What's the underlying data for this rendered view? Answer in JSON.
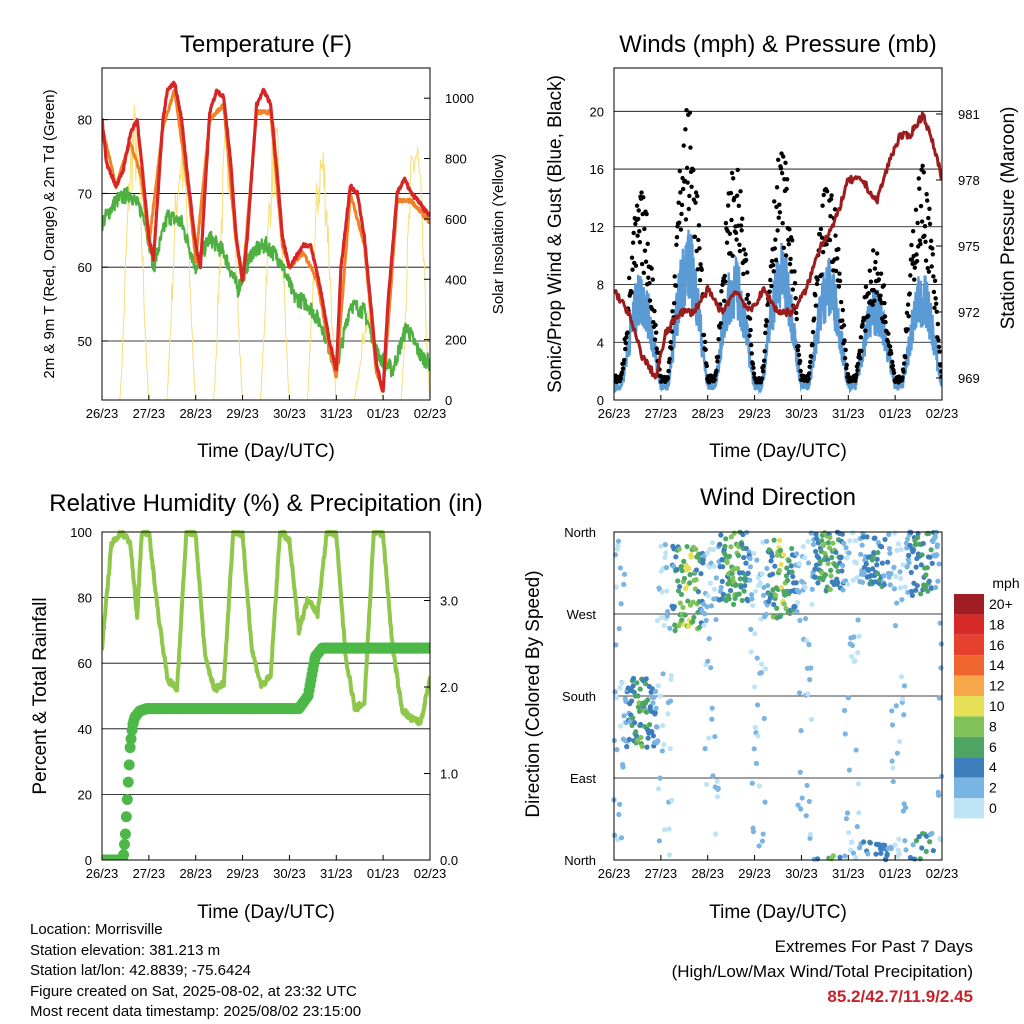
{
  "panels": {
    "temperature": {
      "title": "Temperature (F)",
      "ylabel_left": "2m & 9m T (Red, Orange) & 2m Td (Green)",
      "ylabel_right": "Solar Insolation (Yellow)",
      "xlabel": "Time (Day/UTC)"
    },
    "winds": {
      "title": "Winds (mph) & Pressure (mb)",
      "ylabel_left": "Sonic/Prop Wind & Gust (Blue, Black)",
      "ylabel_right": "Station Pressure (Maroon)",
      "xlabel": "Time (Day/UTC)"
    },
    "humidity": {
      "title": "Relative Humidity (%) & Precipitation (in)",
      "ylabel_left": "Percent & Total Rainfall",
      "xlabel": "Time (Day/UTC)"
    },
    "direction": {
      "title": "Wind Direction",
      "ylabel_left": "Direction (Colored By Speed)",
      "xlabel": "Time (Day/UTC)"
    }
  },
  "colorbar": {
    "title": "mph",
    "labels": [
      "20+",
      "18",
      "16",
      "14",
      "12",
      "10",
      "8",
      "6",
      "4",
      "2",
      "0"
    ],
    "colors": [
      "#a01d23",
      "#d52a27",
      "#e7402f",
      "#f0652f",
      "#f7a64a",
      "#e5e055",
      "#82c359",
      "#4ea664",
      "#3d7ebd",
      "#7ab4e3",
      "#bde3f5"
    ]
  },
  "station": {
    "location": "Location: Morrisville",
    "elevation": "Station elevation: 381.213 m",
    "latlon": "Station lat/lon: 42.8839; -75.6424",
    "created": "Figure created on Sat, 2025-08-02, at 23:32 UTC",
    "latest": "Most recent data timestamp: 2025/08/02 23:15:00"
  },
  "extremes": {
    "heading": "Extremes For Past 7 Days",
    "subheading": "(High/Low/Max Wind/Total Precipitation)",
    "values": "85.2/42.7/11.9/2.45"
  },
  "chart_data": [
    {
      "type": "line",
      "title": "Temperature (F)",
      "xlabel": "Time (Day/UTC)",
      "x_ticks": [
        "26/23",
        "27/23",
        "28/23",
        "29/23",
        "30/23",
        "31/23",
        "01/23",
        "02/23"
      ],
      "ylim": [
        42,
        87
      ],
      "yticks": [
        50,
        60,
        70,
        80
      ],
      "y2lim": [
        0,
        1100
      ],
      "y2ticks": [
        0,
        200,
        400,
        600,
        800,
        1000
      ],
      "series": [
        {
          "name": "2m T",
          "color": "#d62626",
          "axis": "left",
          "x": [
            0,
            0.1,
            0.3,
            0.45,
            0.6,
            0.75,
            0.85,
            1.0,
            1.1,
            1.3,
            1.4,
            1.55,
            1.7,
            1.85,
            2.0,
            2.1,
            2.3,
            2.45,
            2.6,
            2.75,
            2.85,
            3.0,
            3.1,
            3.3,
            3.45,
            3.6,
            3.75,
            3.85,
            4.0,
            4.1,
            4.3,
            4.45,
            4.6,
            4.75,
            4.85,
            5.0,
            5.1,
            5.3,
            5.45,
            5.6,
            5.75,
            5.85,
            6.0,
            6.1,
            6.3,
            6.45,
            6.6,
            6.75,
            6.85,
            7.0
          ],
          "y": [
            80,
            74,
            71,
            73,
            78,
            80,
            74,
            64,
            61,
            80,
            84,
            85,
            80,
            71,
            63,
            60,
            81,
            84,
            83,
            74,
            65,
            58,
            64,
            82,
            84,
            82,
            72,
            64,
            60,
            61,
            63,
            63,
            59,
            54,
            50,
            46,
            60,
            71,
            70,
            64,
            54,
            47,
            43,
            55,
            70,
            72,
            70,
            69,
            68,
            67
          ]
        },
        {
          "name": "9m T",
          "color": "#f08228",
          "axis": "left",
          "x": [
            0,
            0.3,
            0.6,
            0.85,
            1.0,
            1.3,
            1.55,
            1.85,
            2.0,
            2.3,
            2.6,
            2.85,
            3.0,
            3.3,
            3.6,
            3.85,
            4.0,
            4.3,
            4.6,
            4.85,
            5.0,
            5.3,
            5.6,
            5.85,
            6.0,
            6.3,
            6.6,
            7.0
          ],
          "y": [
            79,
            71,
            77,
            72,
            63,
            79,
            84,
            70,
            61,
            80,
            82,
            64,
            58,
            81,
            81,
            63,
            60,
            62,
            58,
            49,
            45,
            70,
            63,
            46,
            43,
            69,
            69,
            66
          ]
        },
        {
          "name": "2m Td",
          "color": "#4eb040",
          "axis": "left",
          "x": [
            0,
            0.3,
            0.6,
            0.9,
            1.1,
            1.4,
            1.7,
            2.0,
            2.3,
            2.6,
            2.9,
            3.2,
            3.5,
            3.8,
            4.1,
            4.4,
            4.7,
            5.0,
            5.3,
            5.6,
            5.9,
            6.2,
            6.5,
            6.8,
            7.0
          ],
          "y": [
            66,
            69,
            70,
            67,
            60,
            67,
            66,
            60,
            64,
            62,
            57,
            62,
            63,
            61,
            56,
            55,
            52,
            46,
            55,
            54,
            48,
            46,
            52,
            48,
            47
          ]
        },
        {
          "name": "Solar Insolation",
          "color": "#f5e07a",
          "axis": "right",
          "peaks": [
            1000,
            920,
            980,
            940,
            900,
            300,
            950,
            940
          ]
        }
      ]
    },
    {
      "type": "scatter",
      "title": "Winds (mph) & Pressure (mb)",
      "xlabel": "Time (Day/UTC)",
      "x_ticks": [
        "26/23",
        "27/23",
        "28/23",
        "29/23",
        "30/23",
        "31/23",
        "01/23",
        "02/23"
      ],
      "ylim": [
        0,
        23
      ],
      "yticks": [
        0,
        4,
        8,
        12,
        16,
        20
      ],
      "y2ticks": [
        969,
        972,
        975,
        978,
        981
      ],
      "series": [
        {
          "name": "Gust",
          "color": "#000000",
          "peaks": [
            14,
            20,
            16,
            17,
            15,
            10,
            16,
            13
          ]
        },
        {
          "name": "Sonic/Prop Wind",
          "color": "#5b9bd5",
          "peaks": [
            9,
            12,
            10,
            11,
            10,
            8,
            9,
            8
          ]
        },
        {
          "name": "Station Pressure",
          "color": "#9b1c1c",
          "x": [
            0,
            0.3,
            0.6,
            0.9,
            1.1,
            1.4,
            1.7,
            2.0,
            2.3,
            2.6,
            2.9,
            3.2,
            3.5,
            3.8,
            4.1,
            4.4,
            4.7,
            5.0,
            5.3,
            5.6,
            5.9,
            6.1,
            6.3,
            6.6,
            6.9,
            7.0
          ],
          "y": [
            973,
            972,
            970,
            969,
            971,
            972,
            972,
            973,
            972,
            973,
            972,
            973,
            972,
            972,
            973,
            975,
            976,
            978,
            978,
            977,
            979,
            980,
            980,
            981,
            979,
            978
          ]
        }
      ]
    },
    {
      "type": "line",
      "title": "Relative Humidity (%) & Precipitation (in)",
      "xlabel": "Time (Day/UTC)",
      "x_ticks": [
        "26/23",
        "27/23",
        "28/23",
        "29/23",
        "30/23",
        "31/23",
        "01/23",
        "02/23"
      ],
      "ylim": [
        0,
        100
      ],
      "yticks": [
        0,
        20,
        40,
        60,
        80,
        100
      ],
      "y2ticks": [
        "0.0",
        "1.0",
        "2.0",
        "3.0"
      ],
      "series": [
        {
          "name": "Relative Humidity",
          "color": "#8fc74a",
          "x": [
            0,
            0.1,
            0.2,
            0.4,
            0.6,
            0.75,
            0.85,
            1.0,
            1.2,
            1.4,
            1.6,
            1.8,
            1.9,
            2.0,
            2.2,
            2.4,
            2.6,
            2.8,
            2.9,
            3.0,
            3.2,
            3.4,
            3.6,
            3.8,
            3.9,
            4.0,
            4.2,
            4.4,
            4.6,
            4.8,
            4.9,
            5.0,
            5.2,
            5.4,
            5.6,
            5.8,
            5.9,
            6.0,
            6.2,
            6.4,
            6.6,
            6.8,
            7.0
          ],
          "y": [
            65,
            80,
            96,
            100,
            97,
            74,
            100,
            100,
            75,
            55,
            52,
            100,
            100,
            99,
            62,
            52,
            54,
            100,
            100,
            99,
            64,
            53,
            56,
            100,
            99,
            97,
            70,
            80,
            75,
            100,
            100,
            99,
            62,
            46,
            48,
            100,
            100,
            99,
            65,
            46,
            43,
            42,
            55
          ]
        },
        {
          "name": "Total Rainfall",
          "color": "#4cb847",
          "x": [
            0,
            0.45,
            0.5,
            0.55,
            0.6,
            0.65,
            0.7,
            0.8,
            0.95,
            4.2,
            4.4,
            4.55,
            4.7,
            7.0
          ],
          "y": [
            0,
            0,
            0.3,
            0.8,
            1.3,
            1.55,
            1.65,
            1.72,
            1.75,
            1.75,
            1.9,
            2.35,
            2.45,
            2.45
          ]
        }
      ]
    },
    {
      "type": "scatter",
      "title": "Wind Direction",
      "xlabel": "Time (Day/UTC)",
      "x_ticks": [
        "26/23",
        "27/23",
        "28/23",
        "29/23",
        "30/23",
        "31/23",
        "01/23",
        "02/23"
      ],
      "y_ticks": [
        "North",
        "East",
        "South",
        "West",
        "North"
      ],
      "ylim": [
        0,
        360
      ],
      "legend": "right"
    }
  ]
}
